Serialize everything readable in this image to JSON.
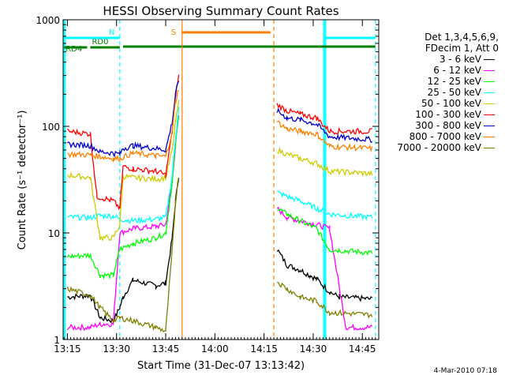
{
  "chart_data": {
    "type": "line",
    "title": "HESSI Observing Summary Count Rates",
    "xlabel": "Start Time (31-Dec-07 13:13:42)",
    "ylabel": "Count Rate (s⁻¹ detector⁻¹)",
    "y_scale": "log",
    "ylim": [
      1,
      1000
    ],
    "xlim": [
      "13:13:42",
      "14:50:00"
    ],
    "x_ticks": [
      "13:15",
      "13:30",
      "13:45",
      "14:00",
      "14:15",
      "14:30",
      "14:45"
    ],
    "y_ticks": [
      "1",
      "10",
      "100",
      "1000"
    ],
    "grid": false,
    "legend_placement": "right",
    "legend_header": [
      "Det 1,3,4,5,6,9,",
      "FDecim 1, Att 0"
    ],
    "series": [
      {
        "name": "3 - 6 keV",
        "color": "#000000",
        "points": [
          [
            "13:15",
            2.5
          ],
          [
            "13:22",
            2.6
          ],
          [
            "13:25",
            1.6
          ],
          [
            "13:29",
            1.5
          ],
          [
            "13:31",
            2.0
          ],
          [
            "13:32",
            2.5
          ],
          [
            "13:35",
            3.6
          ],
          [
            "13:42",
            3.2
          ],
          [
            "13:45",
            3.4
          ],
          [
            "13:47",
            9
          ],
          [
            "13:48",
            20
          ],
          [
            "13:49",
            35
          ],
          null,
          [
            "14:19",
            7
          ],
          [
            "14:22",
            5
          ],
          [
            "14:26",
            4.5
          ],
          [
            "14:29",
            4
          ],
          [
            "14:31",
            3.7
          ],
          [
            "14:35",
            2.8
          ],
          [
            "14:38",
            2.5
          ],
          [
            "14:48",
            2.4
          ]
        ]
      },
      {
        "name": "6 - 12 keV",
        "color": "#ff00ff",
        "points": [
          [
            "13:15",
            1.3
          ],
          [
            "13:22",
            1.3
          ],
          [
            "13:25",
            1.4
          ],
          [
            "13:29",
            1.4
          ],
          [
            "13:31",
            10
          ],
          [
            "13:35",
            11
          ],
          [
            "13:42",
            11.5
          ],
          [
            "13:45",
            12
          ],
          [
            "13:47",
            30
          ],
          [
            "13:48",
            70
          ],
          [
            "13:49",
            120
          ],
          null,
          [
            "14:19",
            17
          ],
          [
            "14:22",
            14
          ],
          [
            "14:26",
            13
          ],
          [
            "14:31",
            12
          ],
          [
            "14:35",
            11
          ],
          [
            "14:40",
            1.3
          ],
          [
            "14:48",
            1.3
          ]
        ]
      },
      {
        "name": "12 - 25 keV",
        "color": "#00ff00",
        "points": [
          [
            "13:15",
            6
          ],
          [
            "13:22",
            6.2
          ],
          [
            "13:25",
            4.0
          ],
          [
            "13:29",
            4.0
          ],
          [
            "13:31",
            7
          ],
          [
            "13:35",
            8
          ],
          [
            "13:42",
            9
          ],
          [
            "13:45",
            10
          ],
          [
            "13:47",
            30
          ],
          [
            "13:48",
            70
          ],
          [
            "13:49",
            130
          ],
          null,
          [
            "14:19",
            17
          ],
          [
            "14:22",
            15
          ],
          [
            "14:26",
            13
          ],
          [
            "14:31",
            11
          ],
          [
            "14:35",
            7
          ],
          [
            "14:48",
            6.5
          ]
        ]
      },
      {
        "name": "25 - 50 keV",
        "color": "#00ffff",
        "points": [
          [
            "13:15",
            14
          ],
          [
            "13:22",
            14
          ],
          [
            "13:25",
            14.5
          ],
          [
            "13:29",
            14.5
          ],
          [
            "13:31",
            13.5
          ],
          [
            "13:35",
            13
          ],
          [
            "13:42",
            13.5
          ],
          [
            "13:45",
            14
          ],
          [
            "13:47",
            35
          ],
          [
            "13:48",
            80
          ],
          [
            "13:49",
            150
          ],
          null,
          [
            "14:19",
            24
          ],
          [
            "14:22",
            22
          ],
          [
            "14:26",
            20
          ],
          [
            "14:31",
            17
          ],
          [
            "14:35",
            15
          ],
          [
            "14:48",
            14
          ]
        ]
      },
      {
        "name": "50 - 100 keV",
        "color": "#cccc00",
        "points": [
          [
            "13:15",
            35
          ],
          [
            "13:22",
            33
          ],
          [
            "13:25",
            9
          ],
          [
            "13:29",
            9
          ],
          [
            "13:31",
            12
          ],
          [
            "13:32",
            34
          ],
          [
            "13:35",
            33
          ],
          [
            "13:42",
            32
          ],
          [
            "13:45",
            33
          ],
          [
            "13:47",
            60
          ],
          [
            "13:48",
            110
          ],
          [
            "13:49",
            170
          ],
          null,
          [
            "14:19",
            60
          ],
          [
            "14:22",
            55
          ],
          [
            "14:26",
            50
          ],
          [
            "14:31",
            45
          ],
          [
            "14:35",
            38
          ],
          [
            "14:48",
            36
          ]
        ]
      },
      {
        "name": "100 - 300 keV",
        "color": "#ff0000",
        "points": [
          [
            "13:15",
            90
          ],
          [
            "13:22",
            85
          ],
          [
            "13:24",
            22
          ],
          [
            "13:29",
            20
          ],
          [
            "13:31",
            17
          ],
          [
            "13:32",
            42
          ],
          [
            "13:35",
            40
          ],
          [
            "13:42",
            38
          ],
          [
            "13:45",
            35
          ],
          [
            "13:47",
            90
          ],
          [
            "13:48",
            200
          ],
          [
            "13:49",
            300
          ],
          null,
          [
            "14:19",
            160
          ],
          [
            "14:22",
            140
          ],
          [
            "14:26",
            130
          ],
          [
            "14:31",
            120
          ],
          [
            "14:35",
            90
          ],
          [
            "14:48",
            90
          ]
        ]
      },
      {
        "name": "300 - 800 keV",
        "color": "#0000cc",
        "points": [
          [
            "13:15",
            68
          ],
          [
            "13:22",
            66
          ],
          [
            "13:25",
            58
          ],
          [
            "13:29",
            56
          ],
          [
            "13:31",
            55
          ],
          [
            "13:32",
            62
          ],
          [
            "13:35",
            66
          ],
          [
            "13:42",
            62
          ],
          [
            "13:45",
            60
          ],
          [
            "13:47",
            110
          ],
          [
            "13:48",
            200
          ],
          [
            "13:49",
            270
          ],
          null,
          [
            "14:19",
            140
          ],
          [
            "14:22",
            120
          ],
          [
            "14:26",
            115
          ],
          [
            "14:31",
            105
          ],
          [
            "14:35",
            80
          ],
          [
            "14:48",
            75
          ]
        ]
      },
      {
        "name": "800 - 7000 keV",
        "color": "#ff8000",
        "points": [
          [
            "13:15",
            55
          ],
          [
            "13:22",
            54
          ],
          [
            "13:25",
            52
          ],
          [
            "13:29",
            50
          ],
          [
            "13:31",
            50
          ],
          [
            "13:35",
            56
          ],
          [
            "13:42",
            53
          ],
          [
            "13:45",
            52
          ],
          [
            "13:47",
            90
          ],
          [
            "13:48",
            170
          ],
          [
            "13:49",
            230
          ],
          null,
          [
            "14:19",
            110
          ],
          [
            "14:22",
            95
          ],
          [
            "14:26",
            90
          ],
          [
            "14:31",
            85
          ],
          [
            "14:35",
            65
          ],
          [
            "14:48",
            62
          ]
        ]
      },
      {
        "name": "7000 - 20000 keV",
        "color": "#808000",
        "points": [
          [
            "13:15",
            3.0
          ],
          [
            "13:22",
            2.6
          ],
          [
            "13:25",
            2.0
          ],
          [
            "13:29",
            1.5
          ],
          [
            "13:31",
            1.6
          ],
          [
            "13:35",
            1.5
          ],
          [
            "13:42",
            1.3
          ],
          [
            "13:45",
            1.2
          ],
          [
            "13:47",
            7
          ],
          [
            "13:48",
            20
          ],
          [
            "13:49",
            35
          ],
          null,
          [
            "14:19",
            3.5
          ],
          [
            "14:22",
            3.0
          ],
          [
            "14:26",
            2.5
          ],
          [
            "14:31",
            2.3
          ],
          [
            "14:35",
            1.8
          ],
          [
            "14:48",
            1.7
          ]
        ]
      }
    ],
    "markers": [
      {
        "label": "N",
        "color": "#00ffff",
        "style": "dashed",
        "x": "13:31"
      },
      {
        "label": "S",
        "color": "#ff8000",
        "style": "solid",
        "x": "13:50"
      },
      {
        "label": "",
        "color": "#ff8000",
        "style": "dashed",
        "x": "14:18"
      },
      {
        "label": "",
        "color": "#00ffff",
        "style": "dashed",
        "x": "14:49"
      }
    ],
    "flag_bars": [
      {
        "label": "RD4",
        "color": "#008000",
        "x": [
          "13:14",
          "13:21"
        ]
      },
      {
        "label": "RD0",
        "color": "#008000",
        "x": [
          "13:22",
          "13:31"
        ]
      },
      {
        "label": "",
        "color": "#008000",
        "x": [
          "13:32",
          "14:49"
        ]
      },
      {
        "label": "",
        "color": "#00ffff",
        "x": [
          "13:14",
          "13:31"
        ]
      },
      {
        "label": "",
        "color": "#ff8000",
        "x": [
          "13:50",
          "14:17"
        ]
      },
      {
        "label": "",
        "color": "#00ffff",
        "x": [
          "14:33",
          "14:49"
        ]
      }
    ],
    "shaded_intervals": [
      {
        "color": "#00ffff",
        "x": [
          "13:13:42",
          "13:14:30"
        ]
      },
      {
        "color": "#00ffff",
        "x": [
          "14:33",
          "14:34"
        ]
      }
    ]
  },
  "footer": {
    "timestamp": "4-Mar-2010 07:18"
  }
}
